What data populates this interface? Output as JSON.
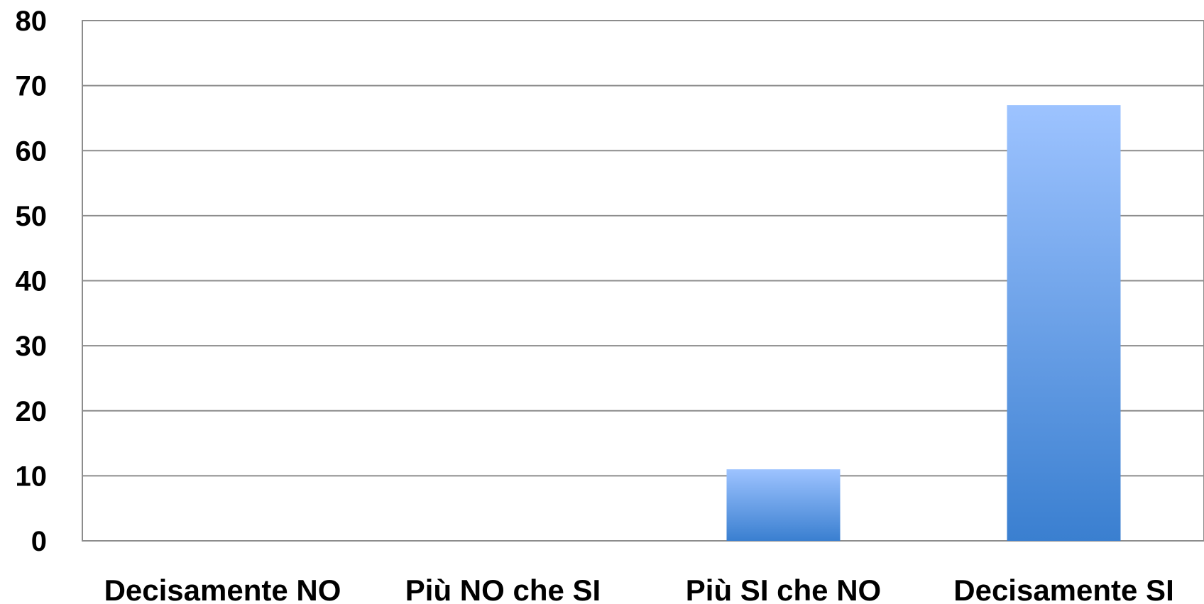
{
  "chart_data": {
    "type": "bar",
    "title": "",
    "xlabel": "",
    "ylabel": "",
    "categories": [
      "Decisamente NO",
      "Più NO che SI",
      "Più SI che NO",
      "Decisamente SI"
    ],
    "values": [
      0,
      0,
      11,
      67
    ],
    "ylim": [
      0,
      80
    ],
    "yticks": [
      "0",
      "10",
      "20",
      "30",
      "40",
      "50",
      "60",
      "70",
      "80"
    ],
    "grid": true,
    "legend": "none",
    "colors": {
      "bar_top": "#9dc3ff",
      "bar_bottom": "#3a7fd0",
      "grid": "#8c8c8c"
    }
  }
}
